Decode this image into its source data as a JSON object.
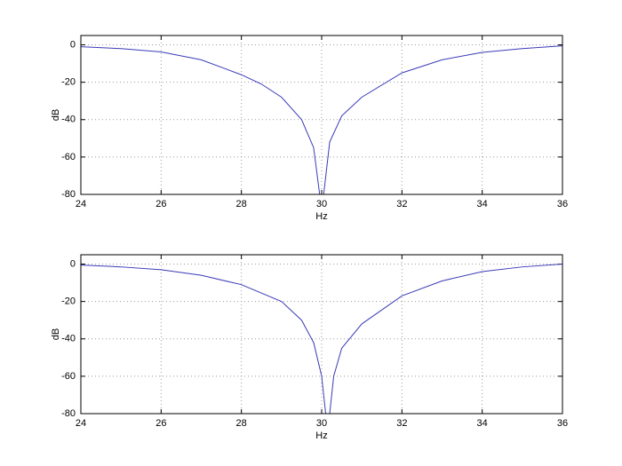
{
  "chart_data": [
    {
      "type": "line",
      "xlabel": "Hz",
      "ylabel": "dB",
      "x": [
        24,
        25,
        26,
        27,
        28,
        28.5,
        29,
        29.5,
        29.8,
        29.95,
        30.05,
        30.2,
        30.5,
        31,
        32,
        33,
        34,
        35,
        36
      ],
      "series": [
        {
          "color": "#3a3ab8",
          "values": [
            -1,
            -2,
            -3.8,
            -8,
            -16,
            -21,
            -28,
            -40,
            -55,
            -80,
            -80,
            -52,
            -38,
            -28,
            -15,
            -8,
            -4,
            -2,
            -0.5
          ]
        }
      ],
      "xlim": [
        24,
        36
      ],
      "xticks": [
        24,
        26,
        28,
        30,
        32,
        34,
        36
      ],
      "ylim": [
        -80,
        5
      ],
      "yticks": [
        -80,
        -60,
        -40,
        -20,
        0
      ],
      "grid": true
    },
    {
      "type": "line",
      "xlabel": "Hz",
      "ylabel": "dB",
      "x": [
        24,
        25,
        26,
        27,
        28,
        29,
        29.5,
        29.8,
        30,
        30.1,
        30.2,
        30.3,
        30.5,
        31,
        32,
        33,
        34,
        35,
        36
      ],
      "series": [
        {
          "color": "#3a3ab8",
          "values": [
            -0.5,
            -1.5,
            -3,
            -6,
            -11,
            -20,
            -30,
            -42,
            -60,
            -80,
            -80,
            -60,
            -45,
            -32,
            -17,
            -9,
            -4,
            -1.5,
            0
          ]
        }
      ],
      "xlim": [
        24,
        36
      ],
      "xticks": [
        24,
        26,
        28,
        30,
        32,
        34,
        36
      ],
      "ylim": [
        -80,
        5
      ],
      "yticks": [
        -80,
        -60,
        -40,
        -20,
        0
      ],
      "grid": true
    }
  ]
}
